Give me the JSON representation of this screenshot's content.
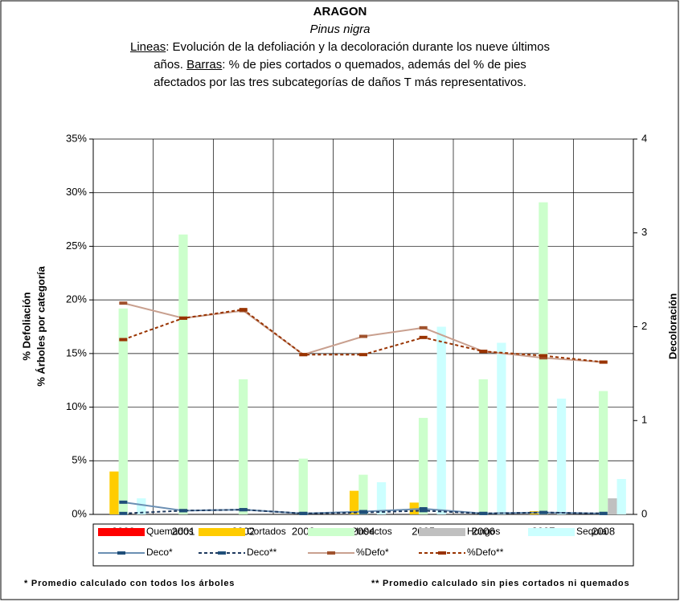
{
  "chart_data": {
    "type": "bar",
    "title": "ARAGON",
    "subtitle": "Pinus nigra",
    "description": [
      "Lineas",
      ": Evolución de la defoliación y la decoloración durante los nueve últimos",
      "años. ",
      "Barras",
      ": % de pies cortados o quemados, además del % de pies",
      "afectados por las tres subcategorías de daños T más representativos."
    ],
    "y_label": [
      "% Defoliación",
      "% Árboles por categoría"
    ],
    "y2_label": "Decoloración",
    "categories": [
      "2000",
      "2001",
      "2002",
      "2003",
      "2004",
      "2005",
      "2006",
      "2007",
      "2008"
    ],
    "ylim": [
      0,
      35
    ],
    "yticks": [
      {
        "value": 0,
        "label": "0%"
      },
      {
        "value": 5,
        "label": "5%"
      },
      {
        "value": 10,
        "label": "10%"
      },
      {
        "value": 15,
        "label": "15%"
      },
      {
        "value": 20,
        "label": "20%"
      },
      {
        "value": 25,
        "label": "25%"
      },
      {
        "value": 30,
        "label": "30%"
      },
      {
        "value": 35,
        "label": "35%"
      }
    ],
    "y2lim": [
      0,
      4
    ],
    "y2ticks": [
      0,
      1,
      2,
      3,
      4
    ],
    "grid": true,
    "series": [
      {
        "name": "Quemados",
        "type": "bar",
        "color": "#ff0000",
        "values": [
          0,
          0,
          0,
          0,
          0,
          0,
          0,
          0,
          0
        ]
      },
      {
        "name": "Cortados",
        "type": "bar",
        "color": "#ffcc00",
        "values": [
          4.0,
          0,
          0,
          0,
          2.2,
          1.1,
          0,
          0.3,
          0
        ]
      },
      {
        "name": "Insectos",
        "type": "bar",
        "color": "#ccffcc",
        "values": [
          19.2,
          26.1,
          12.6,
          5.2,
          3.7,
          9.0,
          12.6,
          29.1,
          11.5
        ]
      },
      {
        "name": "Hongos",
        "type": "bar",
        "color": "#c0c0c0",
        "values": [
          0,
          0,
          0,
          0,
          0,
          0,
          0,
          0,
          1.5
        ]
      },
      {
        "name": "Sequía",
        "type": "bar",
        "color": "#ccffff",
        "values": [
          1.5,
          0,
          0,
          0,
          3.0,
          17.5,
          16.0,
          10.8,
          3.3
        ]
      },
      {
        "name": "Deco*",
        "type": "line",
        "axis": "y2",
        "color": "#6b8fb3",
        "marker_color": "#1f4e79",
        "dashed": false,
        "values": [
          0.13,
          0.04,
          0.05,
          0.01,
          0.03,
          0.06,
          0.01,
          0.02,
          0.01
        ]
      },
      {
        "name": "Deco**",
        "type": "line",
        "axis": "y2",
        "color": "#1f3a5f",
        "marker_color": "#1f4e79",
        "dashed": true,
        "values": [
          0.01,
          0.04,
          0.05,
          0.01,
          0.02,
          0.04,
          0.01,
          0.02,
          0.01
        ]
      },
      {
        "name": "%Defo*",
        "type": "line",
        "color": "#c9a08f",
        "marker_color": "#a0522d",
        "dashed": false,
        "values": [
          19.7,
          18.3,
          19.0,
          14.9,
          16.6,
          17.4,
          15.2,
          14.6,
          14.2
        ]
      },
      {
        "name": "%Defo**",
        "type": "line",
        "color": "#993300",
        "marker_color": "#993300",
        "dashed": true,
        "values": [
          16.3,
          18.3,
          19.1,
          14.9,
          14.9,
          16.5,
          15.2,
          14.8,
          14.2
        ]
      }
    ],
    "footnotes": [
      "* Promedio calculado con todos los árboles",
      "** Promedio calculado sin pies cortados ni quemados"
    ]
  }
}
